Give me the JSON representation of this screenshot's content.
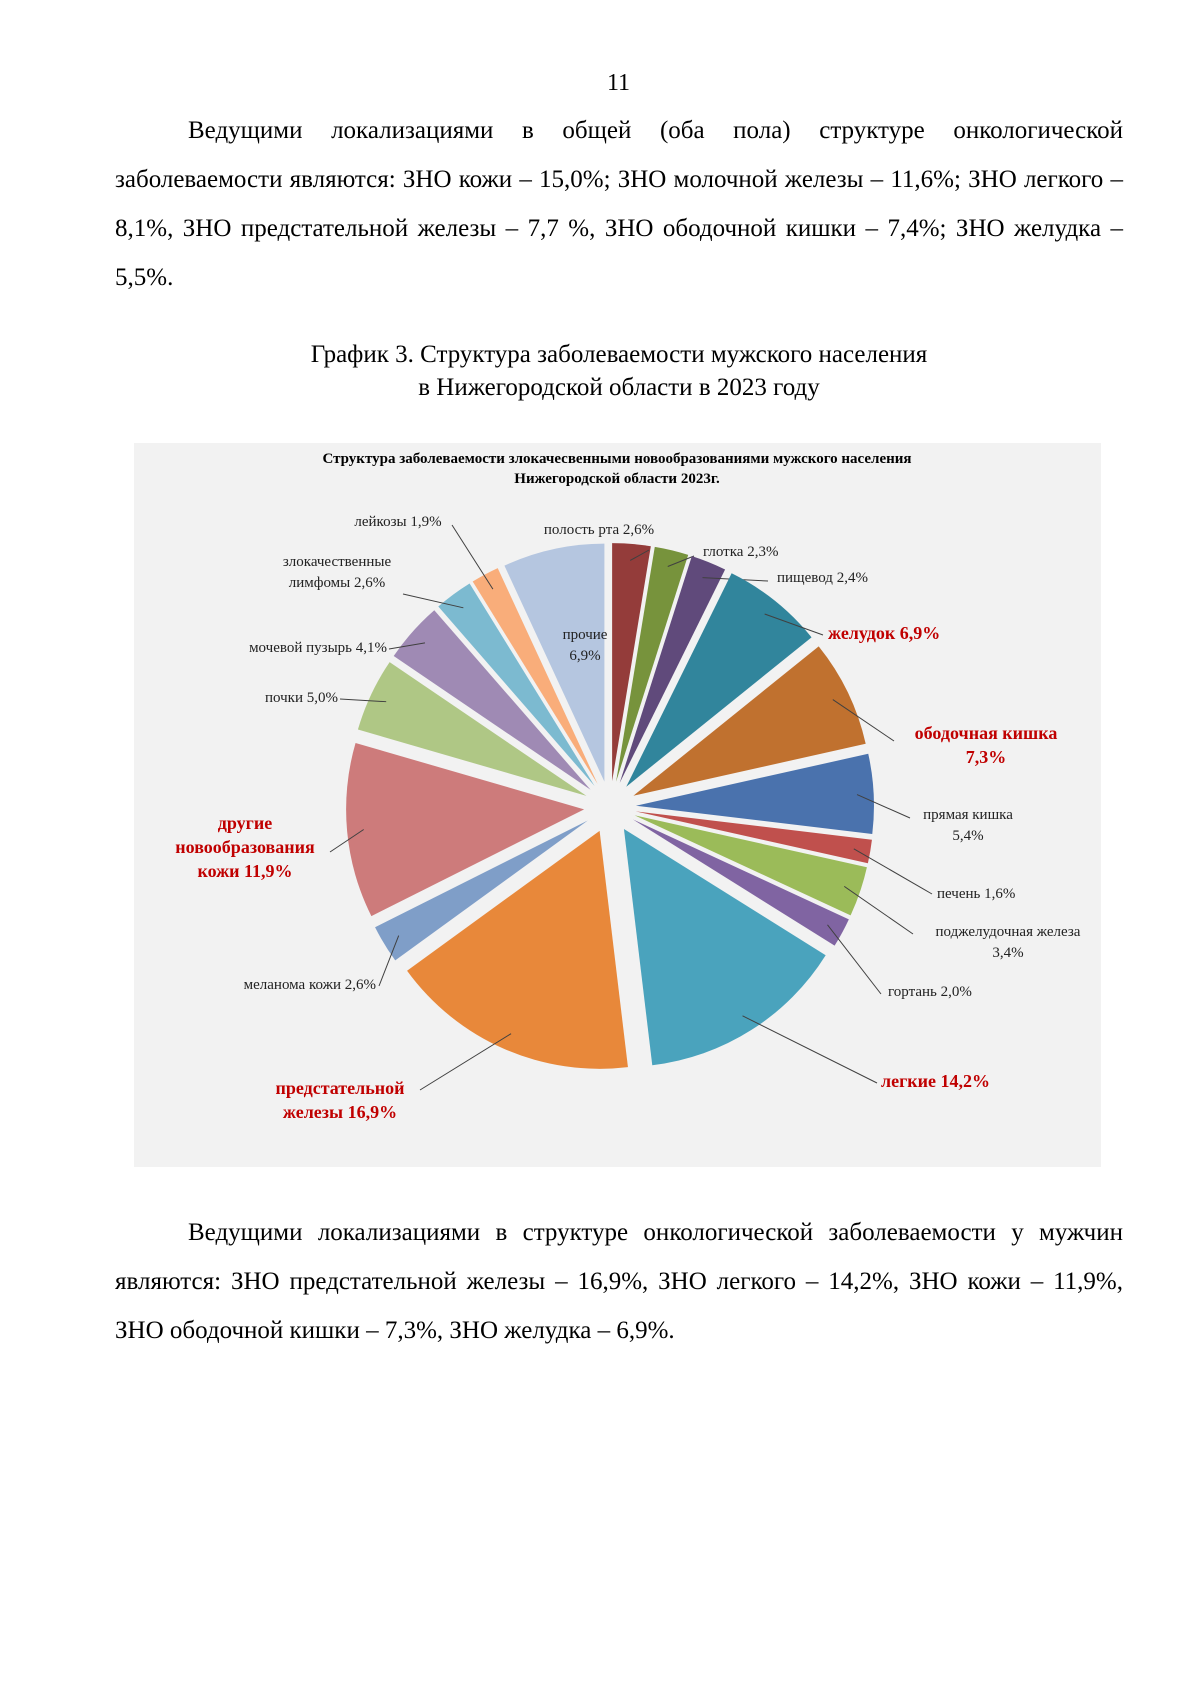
{
  "page_number": "11",
  "paragraph1": "Ведущими локализациями в общей (оба пола) структуре онкологической заболеваемости являются: ЗНО кожи – 15,0%; ЗНО молочной железы – 11,6%; ЗНО легкого – 8,1%, ЗНО предстательной железы – 7,7 %, ЗНО ободочной кишки – 7,4%; ЗНО желудка – 5,5%.",
  "caption": {
    "line1": "График 3. Структура заболеваемости мужского населения",
    "line2": "в Нижегородской области в 2023 году"
  },
  "paragraph2": "Ведущими локализациями в структуре онкологической заболеваемости у мужчин являются: ЗНО предстательной железы – 16,9%, ЗНО легкого – 14,2%, ЗНО кожи – 11,9%, ЗНО ободочной кишки – 7,3%, ЗНО желудка – 6,9%.",
  "chart_data": {
    "type": "pie",
    "title_line1": "Структура заболеваемости злокачесвенными новообразованиями мужского населения",
    "title_line2": "Нижегородской области 2023г.",
    "exploded": true,
    "highlight_color": "#c00000",
    "slices": [
      {
        "label": [
          "полость рта  2,6%"
        ],
        "value": 2.6,
        "color": "#943c3a",
        "highlight": false
      },
      {
        "label": [
          "глотка 2,3%"
        ],
        "value": 2.3,
        "color": "#77933c",
        "highlight": false
      },
      {
        "label": [
          "пищевод 2,4%"
        ],
        "value": 2.4,
        "color": "#604a7b",
        "highlight": false
      },
      {
        "label": [
          "желудок 6,9%"
        ],
        "value": 6.9,
        "color": "#31859c",
        "highlight": true
      },
      {
        "label": [
          "ободочная кишка",
          "7,3%"
        ],
        "value": 7.3,
        "color": "#c0712f",
        "highlight": true
      },
      {
        "label": [
          "прямая кишка",
          "5,4%"
        ],
        "value": 5.4,
        "color": "#4a72ad",
        "highlight": false
      },
      {
        "label": [
          "печень 1,6%"
        ],
        "value": 1.6,
        "color": "#c0504d",
        "highlight": false
      },
      {
        "label": [
          "поджелудочная железа",
          "3,4%"
        ],
        "value": 3.4,
        "color": "#9bbb59",
        "highlight": false
      },
      {
        "label": [
          "гортань 2,0%"
        ],
        "value": 2.0,
        "color": "#8064a2",
        "highlight": false
      },
      {
        "label": [
          "легкие 14,2%"
        ],
        "value": 14.2,
        "color": "#4aa3bd",
        "highlight": true
      },
      {
        "label": [
          "предстательной",
          "железы 16,9%"
        ],
        "value": 16.9,
        "color": "#e8883a",
        "highlight": true
      },
      {
        "label": [
          "меланома кожи 2,6%"
        ],
        "value": 2.6,
        "color": "#7f9ec8",
        "highlight": false
      },
      {
        "label": [
          "другие",
          "новообразования",
          "кожи 11,9%"
        ],
        "value": 11.9,
        "color": "#cd7b7b",
        "highlight": true
      },
      {
        "label": [
          "почки 5,0%"
        ],
        "value": 5.0,
        "color": "#afc785",
        "highlight": false
      },
      {
        "label": [
          "мочевой пузырь 4,1%"
        ],
        "value": 4.1,
        "color": "#9f8ab4",
        "highlight": false
      },
      {
        "label": [
          "злокачественные",
          "лимфомы 2,6%"
        ],
        "value": 2.6,
        "color": "#7cbad0",
        "highlight": false
      },
      {
        "label": [
          "лейкозы 1,9%"
        ],
        "value": 1.9,
        "color": "#f9ad7a",
        "highlight": false
      },
      {
        "label": [
          "прочие",
          "6,9%"
        ],
        "value": 6.9,
        "color": "#b5c6e0",
        "highlight": false
      }
    ]
  }
}
